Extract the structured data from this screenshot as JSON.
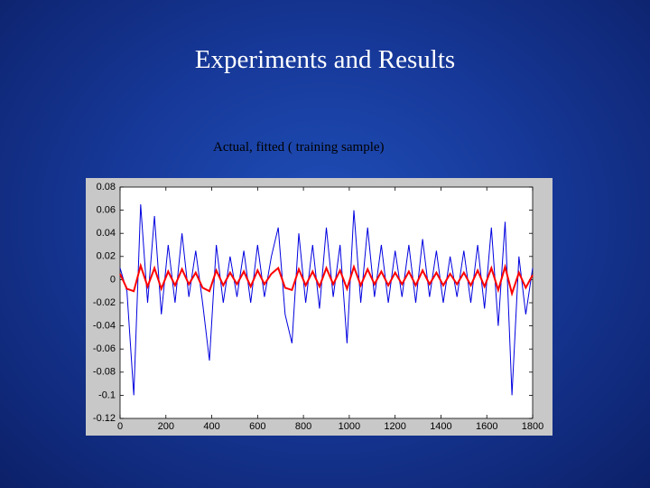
{
  "title": "Experiments and Results",
  "chart_data": {
    "type": "line",
    "title": "Actual, fitted  ( training sample)",
    "x": [
      0,
      30,
      60,
      90,
      120,
      150,
      180,
      210,
      240,
      270,
      300,
      330,
      360,
      390,
      420,
      450,
      480,
      510,
      540,
      570,
      600,
      630,
      660,
      690,
      720,
      750,
      780,
      810,
      840,
      870,
      900,
      930,
      960,
      990,
      1020,
      1050,
      1080,
      1110,
      1140,
      1170,
      1200,
      1230,
      1260,
      1290,
      1320,
      1350,
      1380,
      1410,
      1440,
      1470,
      1500,
      1530,
      1560,
      1590,
      1620,
      1650,
      1680,
      1710,
      1740,
      1770,
      1800
    ],
    "series": [
      {
        "color": "#0000e0",
        "values": [
          0.01,
          -0.01,
          -0.1,
          0.065,
          -0.02,
          0.055,
          -0.03,
          0.03,
          -0.02,
          0.04,
          -0.015,
          0.025,
          -0.02,
          -0.07,
          0.03,
          -0.02,
          0.02,
          -0.015,
          0.025,
          -0.02,
          0.03,
          -0.015,
          0.02,
          0.045,
          -0.03,
          -0.055,
          0.04,
          -0.02,
          0.03,
          -0.025,
          0.045,
          -0.015,
          0.03,
          -0.055,
          0.06,
          -0.02,
          0.045,
          -0.015,
          0.03,
          -0.02,
          0.025,
          -0.015,
          0.03,
          -0.02,
          0.035,
          -0.015,
          0.025,
          -0.02,
          0.02,
          -0.015,
          0.025,
          -0.02,
          0.03,
          -0.025,
          0.045,
          -0.04,
          0.05,
          -0.1,
          0.02,
          -0.03,
          0.01
        ]
      },
      {
        "color": "#ff0000",
        "values": [
          0.005,
          -0.008,
          -0.01,
          0.012,
          -0.006,
          0.01,
          -0.008,
          0.007,
          -0.005,
          0.009,
          -0.004,
          0.006,
          -0.007,
          -0.01,
          0.008,
          -0.005,
          0.006,
          -0.004,
          0.007,
          -0.006,
          0.008,
          -0.004,
          0.005,
          0.01,
          -0.007,
          -0.009,
          0.009,
          -0.005,
          0.007,
          -0.006,
          0.01,
          -0.004,
          0.008,
          -0.008,
          0.011,
          -0.005,
          0.009,
          -0.004,
          0.007,
          -0.005,
          0.006,
          -0.004,
          0.007,
          -0.005,
          0.008,
          -0.004,
          0.006,
          -0.005,
          0.005,
          -0.004,
          0.006,
          -0.005,
          0.008,
          -0.006,
          0.01,
          -0.009,
          0.011,
          -0.012,
          0.006,
          -0.007,
          0.004
        ]
      }
    ],
    "xlim": [
      0,
      1800
    ],
    "xticks": [
      0,
      200,
      400,
      600,
      800,
      1000,
      1200,
      1400,
      1600,
      1800
    ],
    "ylim": [
      -0.12,
      0.08
    ],
    "yticks": [
      0.08,
      0.06,
      0.04,
      0.02,
      0,
      -0.02,
      -0.04,
      -0.06,
      -0.08,
      -0.1,
      -0.12
    ]
  }
}
